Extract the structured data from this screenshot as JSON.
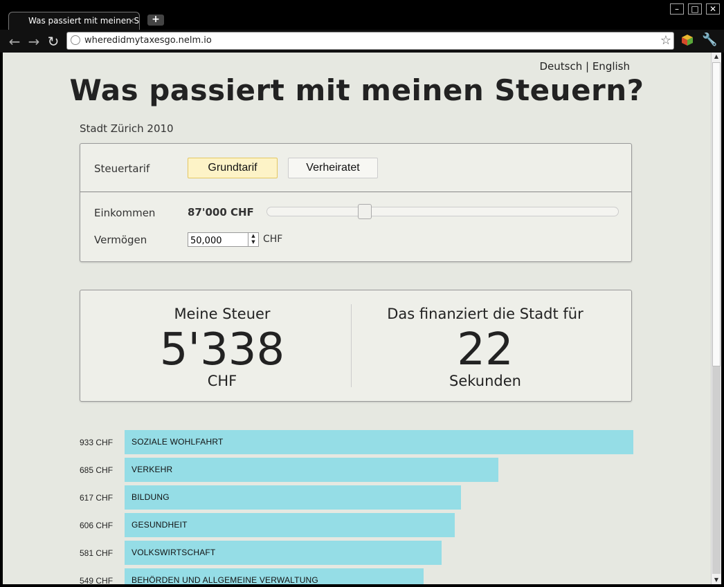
{
  "browser": {
    "tab_title": "Was passiert mit meinen St",
    "tab_close": "×",
    "newtab": "+",
    "url": "wheredidmytaxesgo.nelm.io",
    "win_min": "–",
    "win_max": "□",
    "win_close": "✕"
  },
  "lang": {
    "de": "Deutsch",
    "sep": " | ",
    "en": "English"
  },
  "title": "Was passiert mit meinen Steuern?",
  "subtitle": "Stadt Zürich 2010",
  "controls": {
    "tarif_label": "Steuertarif",
    "tarif_options": [
      "Grundtarif",
      "Verheiratet"
    ],
    "tarif_selected": "Grundtarif",
    "income_label": "Einkommen",
    "income_value": "87'000 CHF",
    "income_slider_fraction": 0.27,
    "wealth_label": "Vermögen",
    "wealth_value": "50,000",
    "wealth_unit": "CHF"
  },
  "result": {
    "tax_title": "Meine Steuer",
    "tax_value": "5'338",
    "tax_unit": "CHF",
    "city_title": "Das finanziert die Stadt für",
    "city_value": "22",
    "city_unit": "Sekunden"
  },
  "breakdown": [
    {
      "amount": "933 CHF",
      "label": "SOZIALE WOHLFAHRT",
      "value": 933
    },
    {
      "amount": "685 CHF",
      "label": "VERKEHR",
      "value": 685
    },
    {
      "amount": "617 CHF",
      "label": "BILDUNG",
      "value": 617
    },
    {
      "amount": "606 CHF",
      "label": "GESUNDHEIT",
      "value": 606
    },
    {
      "amount": "581 CHF",
      "label": "VOLKSWIRTSCHAFT",
      "value": 581
    },
    {
      "amount": "549 CHF",
      "label": "BEHÖRDEN UND ALLGEMEINE VERWALTUNG",
      "value": 549
    }
  ],
  "colors": {
    "bar": "#95dde6",
    "active_button": "#fdf3c7",
    "page_bg": "#e6e8e1"
  }
}
